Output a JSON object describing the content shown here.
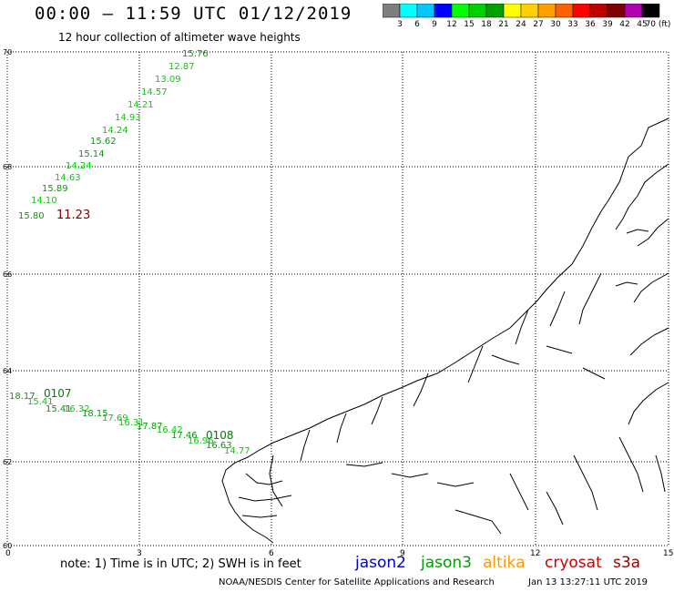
{
  "title": "00:00 – 11:59 UTC 01/12/2019",
  "subtitle": "12 hour collection of altimeter wave heights",
  "legend": {
    "labels": [
      "3",
      "6",
      "9",
      "12",
      "15",
      "18",
      "21",
      "24",
      "27",
      "30",
      "33",
      "36",
      "39",
      "42",
      "45",
      "70 (ft)"
    ],
    "colors": [
      "#7f7f7f",
      "#00ffff",
      "#00c8ff",
      "#0000ff",
      "#00ff00",
      "#00d000",
      "#00a000",
      "#ffff00",
      "#ffd000",
      "#ffa000",
      "#ff6000",
      "#ff0000",
      "#c00000",
      "#800000",
      "#b000b0",
      "#000000"
    ]
  },
  "axes": {
    "x_ticks": [
      "0",
      "3",
      "6",
      "9",
      "12",
      "15"
    ],
    "y_ticks": [
      "70",
      "68",
      "66",
      "64",
      "62",
      "60"
    ]
  },
  "tracks": {
    "north_labels": [
      "15.76",
      "12.87",
      "13.09",
      "14.57",
      "14.21",
      "14.93",
      "14.24",
      "15.62",
      "15.14",
      "14.24",
      "14.63",
      "15.89",
      "14.10",
      "15.80",
      "11.23"
    ],
    "south_labels": [
      "18.17",
      "0107",
      "15.41",
      "15.41",
      "16.32",
      "18.15",
      "17.69",
      "16.31",
      "17.87",
      "16.42",
      "17.46",
      "16.96",
      "0108",
      "16.63",
      "14.77"
    ]
  },
  "note": "note:  1) Time is in UTC;  2) SWH is in feet",
  "satellites": [
    {
      "name": "jason2",
      "color": "#0000cc"
    },
    {
      "name": "jason3",
      "color": "#00a000"
    },
    {
      "name": "altika",
      "color": "#ff9900"
    },
    {
      "name": "cryosat",
      "color": "#cc0000"
    },
    {
      "name": "s3a",
      "color": "#990000"
    }
  ],
  "footer_left": "NOAA/NESDIS Center for Satellite Applications and Research",
  "footer_right": "Jan 13 13:27:11 UTC 2019"
}
